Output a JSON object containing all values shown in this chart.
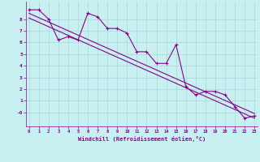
{
  "xlabel": "Windchill (Refroidissement éolien,°C)",
  "bg_color": "#c8f0f0",
  "grid_color": "#a8d8d8",
  "line_color": "#8b008b",
  "data_x": [
    0,
    1,
    2,
    3,
    4,
    5,
    6,
    7,
    8,
    9,
    10,
    11,
    12,
    13,
    14,
    15,
    16,
    17,
    18,
    19,
    20,
    21,
    22,
    23
  ],
  "data_y": [
    8.8,
    8.8,
    8.0,
    6.2,
    6.5,
    6.2,
    8.5,
    8.2,
    7.2,
    7.2,
    6.8,
    5.2,
    5.2,
    4.2,
    4.2,
    5.8,
    2.2,
    1.5,
    1.8,
    1.8,
    1.5,
    0.5,
    -0.5,
    -0.3
  ],
  "trend1_x": [
    0,
    23
  ],
  "trend1_y": [
    8.5,
    -0.1
  ],
  "trend2_x": [
    0,
    23
  ],
  "trend2_y": [
    8.1,
    -0.5
  ],
  "xlim": [
    -0.3,
    23.3
  ],
  "ylim": [
    -1.2,
    9.5
  ],
  "xticks": [
    0,
    1,
    2,
    3,
    4,
    5,
    6,
    7,
    8,
    9,
    10,
    11,
    12,
    13,
    14,
    15,
    16,
    17,
    18,
    19,
    20,
    21,
    22,
    23
  ],
  "yticks": [
    0,
    1,
    2,
    3,
    4,
    5,
    6,
    7,
    8
  ],
  "ytick_labels": [
    "-0",
    "1",
    "2",
    "3",
    "4",
    "5",
    "6",
    "7",
    "8"
  ]
}
